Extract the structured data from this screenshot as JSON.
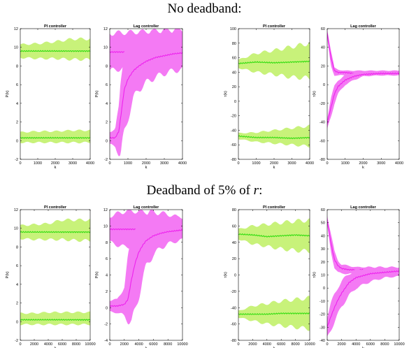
{
  "section_titles": {
    "top": "No deadband:",
    "bottom_prefix": "Deadband of 5% of ",
    "bottom_var": "r",
    "bottom_suffix": ":"
  },
  "colors": {
    "pi_band": "#c8f27a",
    "pi_line": "#33dd11",
    "lag_band": "#f47af4",
    "lag_line": "#ee22ee"
  },
  "chart_data": [
    {
      "type": "area",
      "row": "No deadband",
      "title": "PI controller",
      "xlabel": "k",
      "ylabel": "P(k)",
      "xlim": [
        0,
        4000
      ],
      "ylim": [
        -2,
        12
      ],
      "xticks": [
        0,
        1000,
        2000,
        3000,
        4000
      ],
      "yticks": [
        -2,
        0,
        2,
        4,
        6,
        8,
        10,
        12
      ],
      "series": [
        {
          "x": [
            0,
            1000,
            2000,
            3000,
            4000
          ],
          "mean": [
            9.6,
            9.6,
            9.6,
            9.6,
            9.6
          ],
          "lower": [
            8.9,
            8.8,
            8.8,
            8.7,
            8.7
          ],
          "upper": [
            10.3,
            10.4,
            10.6,
            10.9,
            10.9
          ]
        },
        {
          "x": [
            0,
            1000,
            2000,
            3000,
            4000
          ],
          "mean": [
            0.3,
            0.3,
            0.3,
            0.3,
            0.3
          ],
          "lower": [
            -0.2,
            -0.2,
            -0.2,
            -0.2,
            -0.2
          ],
          "upper": [
            0.9,
            1.0,
            1.0,
            1.1,
            1.1
          ]
        }
      ]
    },
    {
      "type": "area",
      "row": "No deadband",
      "title": "Lag controller",
      "xlabel": "k",
      "ylabel": "P(k)",
      "xlim": [
        0,
        4000
      ],
      "ylim": [
        -2,
        12
      ],
      "xticks": [
        0,
        1000,
        2000,
        3000,
        4000
      ],
      "yticks": [
        -2,
        0,
        2,
        4,
        6,
        8,
        10,
        12
      ],
      "series": [
        {
          "x": [
            0,
            1000,
            2000,
            3000,
            4000
          ],
          "mean": [
            9.5,
            9.5,
            9.5,
            9.5,
            9.5
          ],
          "lower": [
            7.5,
            7.8,
            8.0,
            8.1,
            8.2
          ],
          "upper": [
            11.5,
            11.6,
            11.7,
            11.8,
            11.8
          ]
        },
        {
          "x": [
            0,
            300,
            500,
            600,
            700,
            800,
            1000,
            1300,
            1600,
            2000,
            2500,
            3000,
            3500,
            4000
          ],
          "mean": [
            0.3,
            0.3,
            1.0,
            2.5,
            4.0,
            5.5,
            6.6,
            7.5,
            8.0,
            8.5,
            8.9,
            9.1,
            9.3,
            9.4
          ],
          "lower": [
            -0.4,
            -0.6,
            -1.5,
            -1.7,
            -0.3,
            0.8,
            2.5,
            4.5,
            5.5,
            6.2,
            6.8,
            7.2,
            7.5,
            7.6
          ],
          "upper": [
            1.0,
            1.2,
            3.6,
            6.6,
            8.4,
            10.0,
            10.8,
            11.2,
            11.4,
            11.5,
            11.6,
            11.7,
            11.8,
            11.8
          ]
        }
      ]
    },
    {
      "type": "area",
      "row": "No deadband",
      "title": "PI controller",
      "xlabel": "k",
      "ylabel": "τ(k)",
      "xlim": [
        0,
        4000
      ],
      "ylim": [
        -80,
        100
      ],
      "xticks": [
        0,
        1000,
        2000,
        3000,
        4000
      ],
      "yticks": [
        -80,
        -60,
        -40,
        -20,
        0,
        20,
        40,
        60,
        80,
        100
      ],
      "series": [
        {
          "x": [
            0,
            1000,
            2000,
            3000,
            4000
          ],
          "mean": [
            52,
            54,
            53,
            54,
            55
          ],
          "lower": [
            46,
            40,
            37,
            33,
            32
          ],
          "upper": [
            57,
            66,
            70,
            75,
            80
          ]
        },
        {
          "x": [
            0,
            1000,
            2000,
            3000,
            4000
          ],
          "mean": [
            -48,
            -50,
            -50,
            -51,
            -50
          ],
          "lower": [
            -52,
            -56,
            -58,
            -60,
            -62
          ],
          "upper": [
            -44,
            -43,
            -40,
            -37,
            -34
          ]
        }
      ]
    },
    {
      "type": "area",
      "row": "No deadband",
      "title": "Lag controller",
      "xlabel": "k",
      "ylabel": "τ(k)",
      "xlim": [
        0,
        4000
      ],
      "ylim": [
        -80,
        60
      ],
      "xticks": [
        0,
        1000,
        2000,
        3000,
        4000
      ],
      "yticks": [
        -80,
        -60,
        -40,
        -20,
        0,
        20,
        40,
        60
      ],
      "series": [
        {
          "x": [
            0,
            200,
            400,
            600,
            1000,
            1500,
            2000,
            3000,
            4000
          ],
          "mean": [
            55,
            30,
            15,
            13,
            13,
            12,
            12,
            12,
            12
          ],
          "lower": [
            50,
            20,
            10,
            10,
            10,
            10,
            10,
            10,
            10
          ],
          "upper": [
            60,
            38,
            18,
            16,
            15,
            15,
            15,
            15,
            15
          ]
        },
        {
          "x": [
            0,
            200,
            400,
            600,
            1000,
            1500,
            2000,
            3000,
            4000
          ],
          "mean": [
            -42,
            -25,
            -10,
            -2,
            5,
            9,
            11,
            12,
            12
          ],
          "lower": [
            -48,
            -35,
            -20,
            -10,
            0,
            5,
            9,
            10,
            10
          ],
          "upper": [
            -36,
            -15,
            -2,
            5,
            10,
            13,
            14,
            14,
            14
          ]
        }
      ]
    },
    {
      "type": "area",
      "row": "Deadband",
      "title": "PI controller",
      "xlabel": "k",
      "ylabel": "P(k)",
      "xlim": [
        0,
        10000
      ],
      "ylim": [
        -2,
        12
      ],
      "xticks": [
        0,
        2000,
        4000,
        6000,
        8000,
        10000
      ],
      "yticks": [
        -2,
        0,
        2,
        4,
        6,
        8,
        10,
        12
      ],
      "series": [
        {
          "x": [
            0,
            2000,
            4000,
            6000,
            8000,
            10000
          ],
          "mean": [
            9.6,
            9.6,
            9.6,
            9.6,
            9.6,
            9.6
          ],
          "lower": [
            8.9,
            8.8,
            8.8,
            8.8,
            8.7,
            8.7
          ],
          "upper": [
            10.3,
            10.4,
            10.5,
            10.9,
            10.9,
            10.9
          ]
        },
        {
          "x": [
            0,
            2000,
            4000,
            6000,
            8000,
            10000
          ],
          "mean": [
            0.2,
            0.2,
            0.2,
            0.2,
            0.2,
            0.2
          ],
          "lower": [
            -0.3,
            -0.3,
            -0.3,
            -0.3,
            -0.3,
            -0.3
          ],
          "upper": [
            0.9,
            0.9,
            1.0,
            1.0,
            1.0,
            1.0
          ]
        }
      ]
    },
    {
      "type": "area",
      "row": "Deadband",
      "title": "Lag controller",
      "xlabel": "k",
      "ylabel": "P(k)",
      "xlim": [
        0,
        10000
      ],
      "ylim": [
        -4,
        12
      ],
      "xticks": [
        0,
        2000,
        4000,
        6000,
        8000,
        10000
      ],
      "yticks": [
        -4,
        -2,
        0,
        2,
        4,
        6,
        8,
        10,
        12
      ],
      "series": [
        {
          "x": [
            0,
            2000,
            4000,
            6000,
            8000,
            10000
          ],
          "mean": [
            9.6,
            9.6,
            9.6,
            9.6,
            9.6,
            9.6
          ],
          "lower": [
            8.0,
            7.4,
            7.8,
            8.3,
            8.6,
            8.7
          ],
          "upper": [
            11.2,
            11.8,
            11.8,
            11.5,
            11.2,
            11.0
          ]
        },
        {
          "x": [
            0,
            1000,
            2000,
            2500,
            3000,
            3500,
            4000,
            4500,
            5000,
            6000,
            7000,
            8000,
            9000,
            10000
          ],
          "mean": [
            0.2,
            0.2,
            0.4,
            1.0,
            3.5,
            5.5,
            6.8,
            7.6,
            8.2,
            8.8,
            9.1,
            9.3,
            9.4,
            9.5
          ],
          "lower": [
            -0.5,
            -0.6,
            -1.0,
            -1.5,
            -1.8,
            -0.5,
            1.5,
            3.5,
            5.0,
            6.5,
            7.3,
            7.8,
            8.1,
            8.3
          ],
          "upper": [
            0.9,
            1.0,
            2.5,
            6.0,
            8.5,
            10.0,
            11.0,
            11.5,
            11.6,
            11.7,
            11.6,
            11.4,
            11.2,
            11.0
          ]
        }
      ]
    },
    {
      "type": "area",
      "row": "Deadband",
      "title": "PI controller",
      "xlabel": "k",
      "ylabel": "τ(k)",
      "xlim": [
        0,
        10000
      ],
      "ylim": [
        -80,
        80
      ],
      "xticks": [
        0,
        2000,
        4000,
        6000,
        8000,
        10000
      ],
      "yticks": [
        -80,
        -60,
        -40,
        -20,
        0,
        20,
        40,
        60,
        80
      ],
      "series": [
        {
          "x": [
            0,
            2000,
            4000,
            6000,
            8000,
            10000
          ],
          "mean": [
            50,
            49,
            47,
            48,
            49,
            48
          ],
          "lower": [
            44,
            38,
            35,
            32,
            30,
            29
          ],
          "upper": [
            56,
            60,
            62,
            64,
            66,
            67
          ]
        },
        {
          "x": [
            0,
            2000,
            4000,
            6000,
            8000,
            10000
          ],
          "mean": [
            -48,
            -48,
            -48,
            -47,
            -47,
            -47
          ],
          "lower": [
            -52,
            -56,
            -60,
            -62,
            -64,
            -66
          ],
          "upper": [
            -44,
            -38,
            -35,
            -32,
            -30,
            -28
          ]
        }
      ]
    },
    {
      "type": "area",
      "row": "Deadband",
      "title": "Lag controller",
      "xlabel": "k",
      "ylabel": "τ(k)",
      "xlim": [
        0,
        10000
      ],
      "ylim": [
        -40,
        60
      ],
      "xticks": [
        0,
        2000,
        4000,
        6000,
        8000,
        10000
      ],
      "yticks": [
        -40,
        -30,
        -20,
        -10,
        0,
        10,
        20,
        30,
        40,
        50,
        60
      ],
      "series": [
        {
          "x": [
            0,
            500,
            1000,
            1500,
            2000,
            3000,
            4000,
            6000,
            8000,
            10000
          ],
          "mean": [
            52,
            35,
            22,
            17,
            15,
            14,
            14,
            14,
            13,
            13
          ],
          "lower": [
            48,
            28,
            16,
            12,
            11,
            11,
            11,
            11,
            11,
            11
          ],
          "upper": [
            56,
            42,
            28,
            21,
            18,
            17,
            16,
            16,
            15,
            15
          ]
        },
        {
          "x": [
            0,
            500,
            1000,
            1500,
            2000,
            3000,
            4000,
            6000,
            8000,
            10000
          ],
          "mean": [
            -30,
            -22,
            -15,
            -9,
            -4,
            4,
            8,
            11,
            12,
            13
          ],
          "lower": [
            -38,
            -32,
            -26,
            -20,
            -14,
            -6,
            0,
            5,
            8,
            9
          ],
          "upper": [
            -22,
            -12,
            -5,
            1,
            5,
            11,
            14,
            16,
            16,
            16
          ]
        }
      ]
    }
  ]
}
